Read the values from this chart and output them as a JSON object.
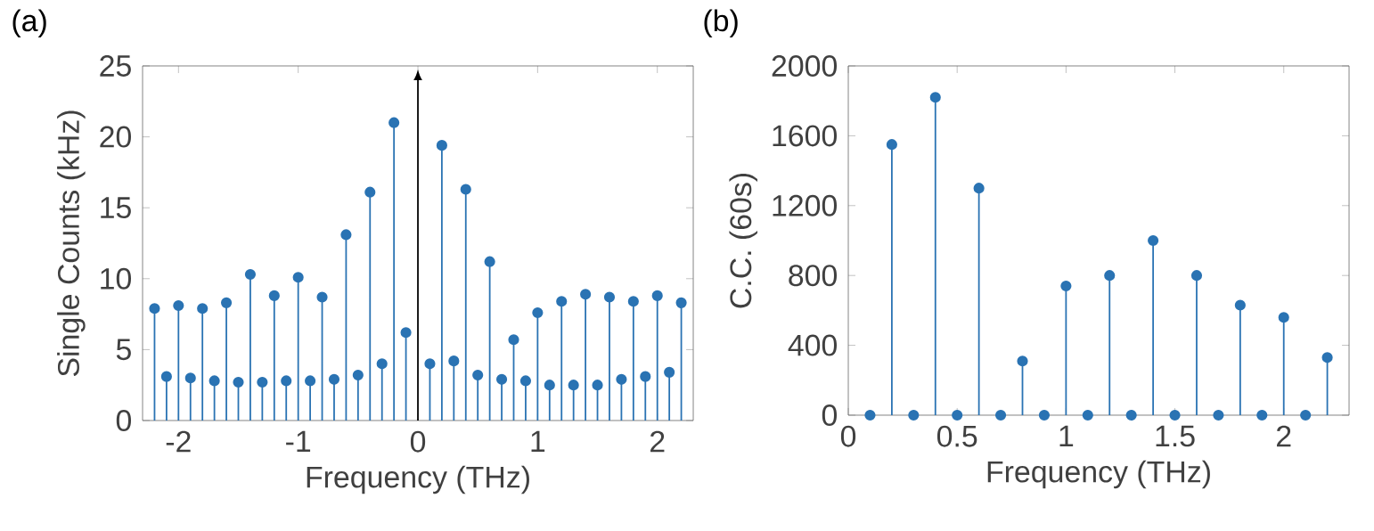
{
  "chart_data": [
    {
      "type": "lollipop",
      "title": "(a)",
      "xlabel": "Frequency (THz)",
      "ylabel": "Single Counts (kHz)",
      "x": [
        -2.2,
        -2.1,
        -2.0,
        -1.9,
        -1.8,
        -1.7,
        -1.6,
        -1.5,
        -1.4,
        -1.3,
        -1.2,
        -1.1,
        -1.0,
        -0.9,
        -0.8,
        -0.7,
        -0.6,
        -0.5,
        -0.4,
        -0.3,
        -0.2,
        -0.1,
        0.1,
        0.2,
        0.3,
        0.4,
        0.5,
        0.6,
        0.7,
        0.8,
        0.9,
        1.0,
        1.1,
        1.2,
        1.3,
        1.4,
        1.5,
        1.6,
        1.7,
        1.8,
        1.9,
        2.0,
        2.1,
        2.2
      ],
      "values": [
        7.9,
        3.1,
        8.1,
        3.0,
        7.9,
        2.8,
        8.3,
        2.7,
        10.3,
        2.7,
        8.8,
        2.8,
        10.1,
        2.8,
        8.7,
        2.9,
        13.1,
        3.2,
        16.1,
        4.0,
        21.0,
        6.2,
        4.0,
        19.4,
        4.2,
        16.3,
        3.2,
        11.2,
        2.9,
        5.7,
        2.8,
        7.6,
        2.5,
        8.4,
        2.5,
        8.9,
        2.5,
        8.7,
        2.9,
        8.4,
        3.1,
        8.8,
        3.4,
        8.3
      ],
      "color": "#2a73b3",
      "marker": "circle",
      "xlim": [
        -2.3,
        2.3
      ],
      "ylim": [
        0,
        25
      ],
      "xticks": [
        -2,
        -1,
        0,
        1,
        2
      ],
      "yticks": [
        0,
        5,
        10,
        15,
        20,
        25
      ],
      "ref_lines": [
        {
          "axis": "x",
          "value": 0,
          "color": "#000000"
        }
      ]
    },
    {
      "type": "lollipop",
      "title": "(b)",
      "xlabel": "Frequency (THz)",
      "ylabel": "C.C. (60s)",
      "x": [
        0.1,
        0.2,
        0.3,
        0.4,
        0.5,
        0.6,
        0.7,
        0.8,
        0.9,
        1.0,
        1.1,
        1.2,
        1.3,
        1.4,
        1.5,
        1.6,
        1.7,
        1.8,
        1.9,
        2.0,
        2.1,
        2.2
      ],
      "values": [
        0,
        1550,
        0,
        1820,
        0,
        1300,
        0,
        310,
        0,
        740,
        0,
        800,
        0,
        1000,
        0,
        800,
        0,
        630,
        0,
        560,
        0,
        330
      ],
      "color": "#2a73b3",
      "marker": "circle",
      "xlim": [
        0,
        2.3
      ],
      "ylim": [
        0,
        2000
      ],
      "xticks": [
        0,
        0.5,
        1,
        1.5,
        2
      ],
      "yticks": [
        0,
        400,
        800,
        1200,
        1600,
        2000
      ]
    }
  ]
}
